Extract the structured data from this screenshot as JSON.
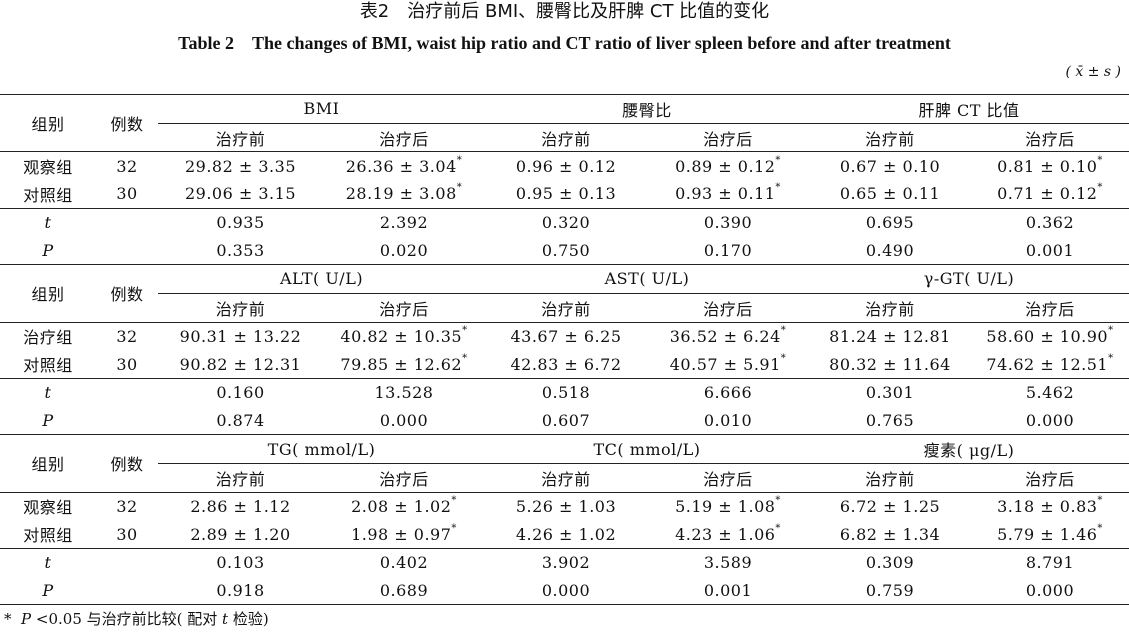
{
  "title_cn": "表2　治疗前后 BMI、腰臀比及肝脾 CT 比值的变化",
  "title_en": "Table 2　The changes of BMI, waist hip ratio and CT ratio of liver spleen before and after treatment",
  "unit": "( x̄ ± s )",
  "col_group": "组别",
  "col_n": "例数",
  "col_before": "治疗前",
  "col_after": "治疗后",
  "sections": [
    {
      "metrics": [
        "BMI",
        "腰臀比",
        "肝脾 CT 比值"
      ],
      "rows": [
        {
          "group": "观察组",
          "n": "32",
          "vals": [
            "29.82 ± 3.35",
            "26.36 ± 3.04",
            "0.96 ± 0.12",
            "0.89 ± 0.12",
            "0.67 ± 0.10",
            "0.81 ± 0.10"
          ],
          "stars": [
            false,
            true,
            false,
            true,
            false,
            true
          ]
        },
        {
          "group": "对照组",
          "n": "30",
          "vals": [
            "29.06 ± 3.15",
            "28.19 ± 3.08",
            "0.95 ± 0.13",
            "0.93 ± 0.11",
            "0.65 ± 0.11",
            "0.71 ± 0.12"
          ],
          "stars": [
            false,
            true,
            false,
            true,
            false,
            true
          ]
        }
      ],
      "t": [
        "0.935",
        "2.392",
        "0.320",
        "0.390",
        "0.695",
        "0.362"
      ],
      "p": [
        "0.353",
        "0.020",
        "0.750",
        "0.170",
        "0.490",
        "0.001"
      ]
    },
    {
      "metrics": [
        "ALT( U/L)",
        "AST( U/L)",
        "γ-GT( U/L)"
      ],
      "rows": [
        {
          "group": "治疗组",
          "n": "32",
          "vals": [
            "90.31 ± 13.22",
            "40.82 ± 10.35",
            "43.67 ± 6.25",
            "36.52 ± 6.24",
            "81.24 ± 12.81",
            "58.60 ± 10.90"
          ],
          "stars": [
            false,
            true,
            false,
            true,
            false,
            true
          ]
        },
        {
          "group": "对照组",
          "n": "30",
          "vals": [
            "90.82 ± 12.31",
            "79.85 ± 12.62",
            "42.83 ± 6.72",
            "40.57 ± 5.91",
            "80.32 ± 11.64",
            "74.62 ± 12.51"
          ],
          "stars": [
            false,
            true,
            false,
            true,
            false,
            true
          ]
        }
      ],
      "t": [
        "0.160",
        "13.528",
        "0.518",
        "6.666",
        "0.301",
        "5.462"
      ],
      "p": [
        "0.874",
        "0.000",
        "0.607",
        "0.010",
        "0.765",
        "0.000"
      ]
    },
    {
      "metrics": [
        "TG( mmol/L)",
        "TC( mmol/L)",
        "瘦素( μg/L)"
      ],
      "rows": [
        {
          "group": "观察组",
          "n": "32",
          "vals": [
            "2.86 ± 1.12",
            "2.08 ± 1.02",
            "5.26 ± 1.03",
            "5.19 ± 1.08",
            "6.72 ± 1.25",
            "3.18 ± 0.83"
          ],
          "stars": [
            false,
            true,
            false,
            true,
            false,
            true
          ]
        },
        {
          "group": "对照组",
          "n": "30",
          "vals": [
            "2.89 ± 1.20",
            "1.98 ± 0.97",
            "4.26 ± 1.02",
            "4.23 ± 1.06",
            "6.82 ± 1.34",
            "5.79 ± 1.46"
          ],
          "stars": [
            false,
            true,
            false,
            true,
            false,
            true
          ]
        }
      ],
      "t": [
        "0.103",
        "0.402",
        "3.902",
        "3.589",
        "0.309",
        "8.791"
      ],
      "p": [
        "0.918",
        "0.689",
        "0.000",
        "0.001",
        "0.759",
        "0.000"
      ]
    }
  ],
  "t_label": "t",
  "p_label": "P",
  "star": "*",
  "footnote": {
    "star": "*",
    "p": "P",
    "lt": " <0.05 与治疗前比较( 配对 ",
    "t": "t",
    "tail": " 检验)"
  }
}
